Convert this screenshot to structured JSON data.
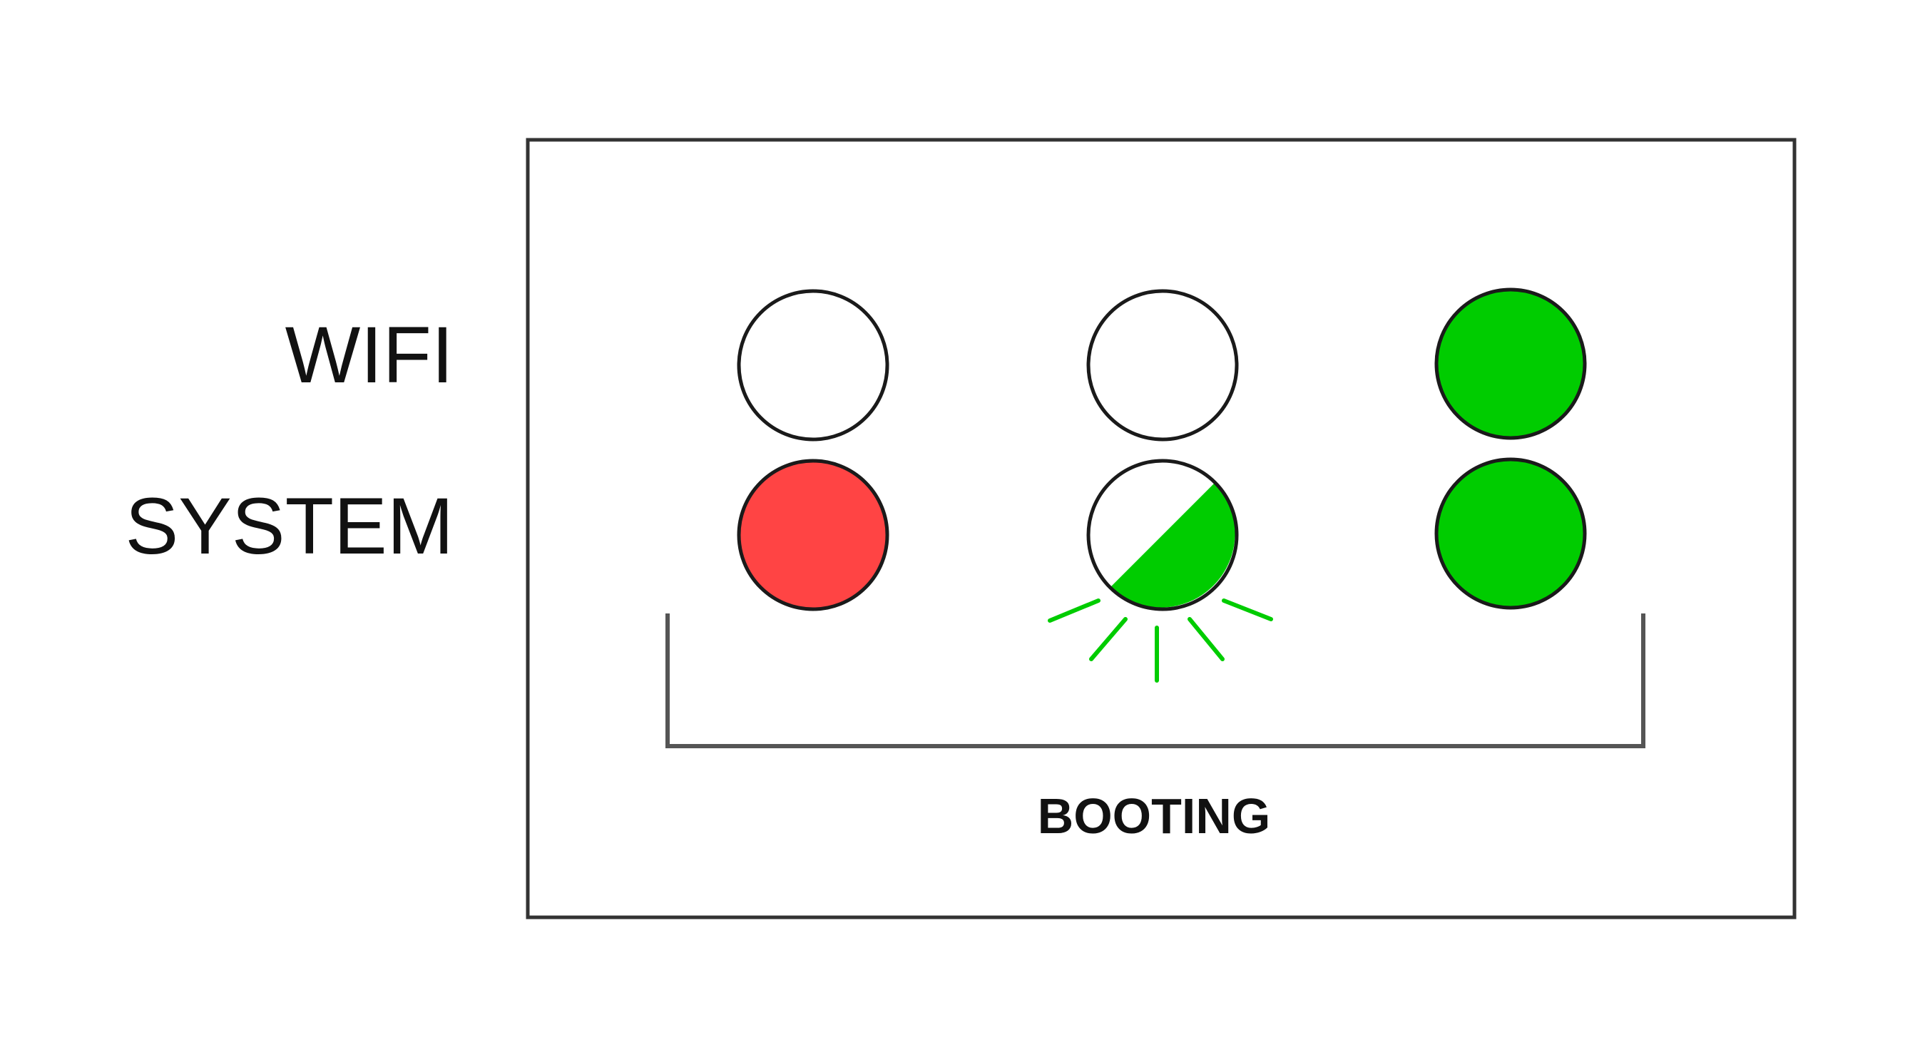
{
  "rows": {
    "wifi": "WIFI",
    "system": "SYSTEM"
  },
  "caption": "BOOTING",
  "colors": {
    "off": "#ffffff",
    "red": "#ff4444",
    "green": "#00cc00",
    "outline": "#1a1a1a",
    "frame": "#333333",
    "bracket": "#555555",
    "glow": "#00cc00"
  },
  "states": [
    {
      "wifi": "off",
      "system": "red-solid"
    },
    {
      "wifi": "off",
      "system": "green-blinking"
    },
    {
      "wifi": "green-solid",
      "system": "green-solid"
    }
  ]
}
